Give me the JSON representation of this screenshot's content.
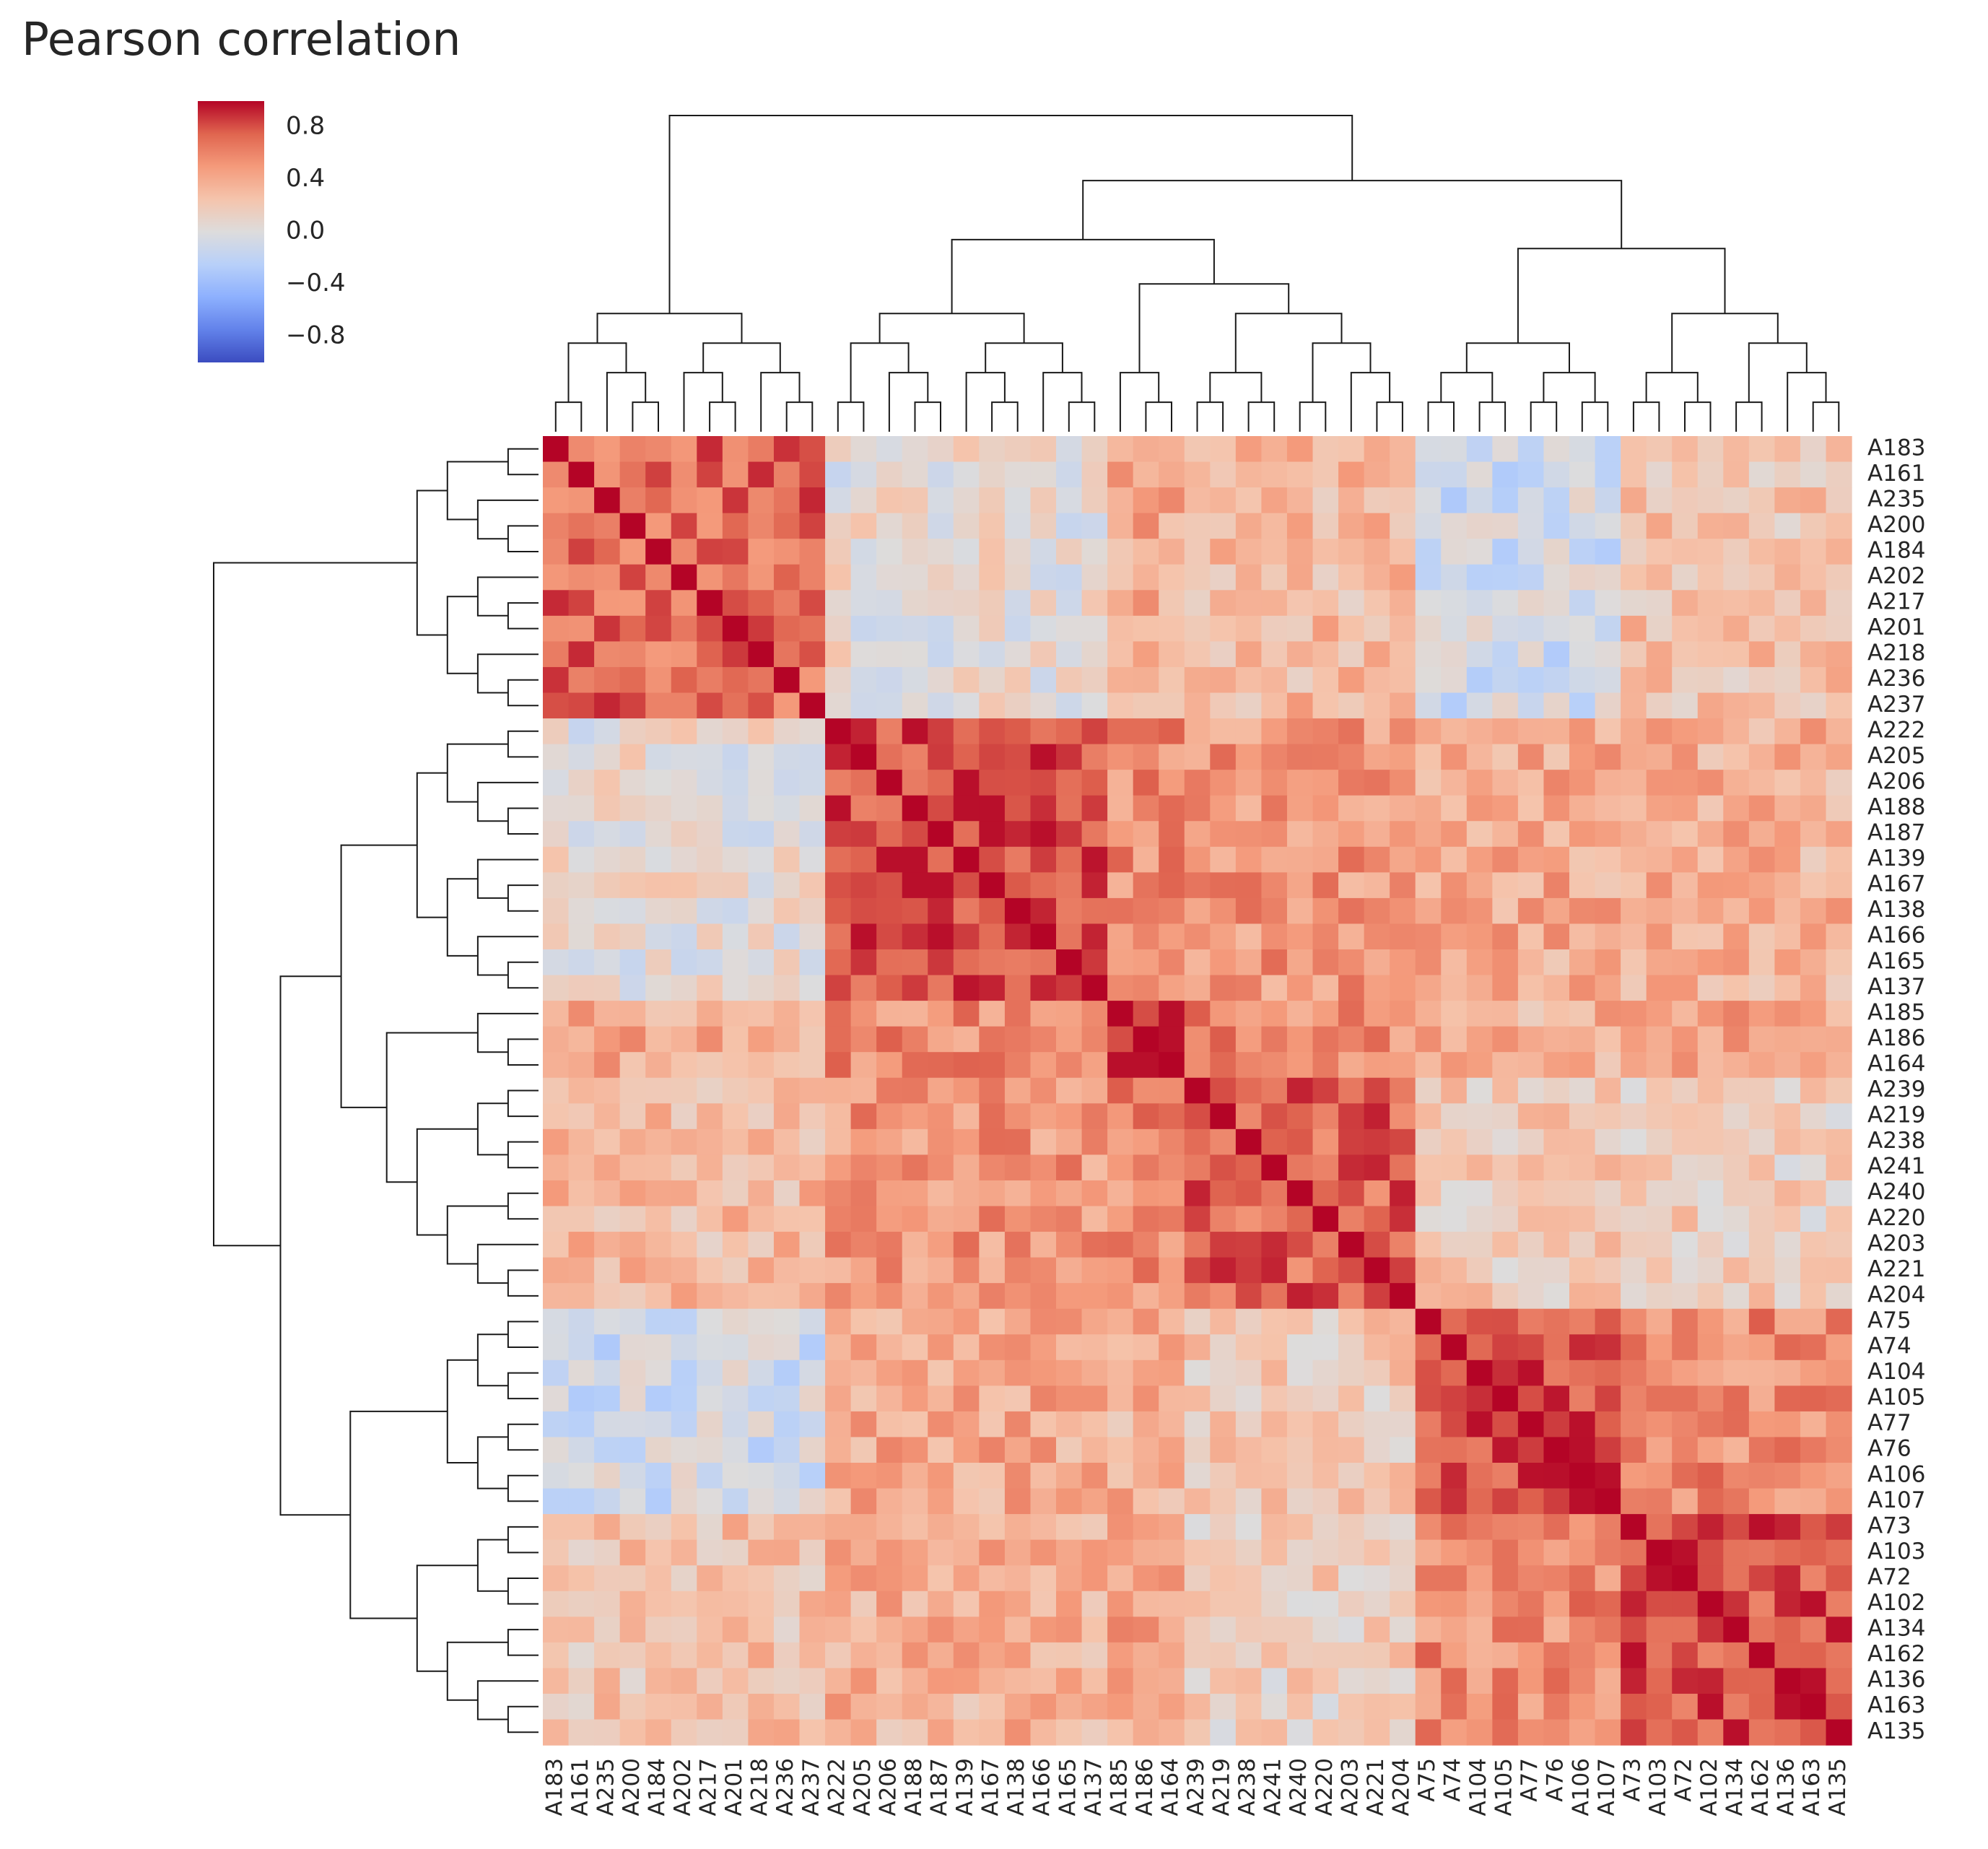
{
  "chart_data": {
    "type": "heatmap",
    "title": "Pearson correlation",
    "clustered": true,
    "colormap": "coolwarm",
    "vmin": -1,
    "vmax": 1,
    "colorbar": {
      "ticks": [
        0.8,
        0.4,
        0.0,
        -0.4,
        -0.8
      ],
      "tick_labels": [
        "0.8",
        "0.4",
        "0.0",
        "−0.4",
        "−0.8"
      ]
    },
    "row_labels": [
      "A183",
      "A161",
      "A235",
      "A200",
      "A184",
      "A202",
      "A217",
      "A201",
      "A218",
      "A236",
      "A237",
      "A222",
      "A205",
      "A206",
      "A188",
      "A187",
      "A139",
      "A167",
      "A138",
      "A166",
      "A165",
      "A137",
      "A185",
      "A186",
      "A164",
      "A239",
      "A219",
      "A238",
      "A241",
      "A240",
      "A220",
      "A203",
      "A221",
      "A204",
      "A75",
      "A74",
      "A104",
      "A105",
      "A77",
      "A76",
      "A106",
      "A107",
      "A73",
      "A103",
      "A72",
      "A102",
      "A134",
      "A162",
      "A136",
      "A163",
      "A135"
    ],
    "col_labels": [
      "A183",
      "A161",
      "A235",
      "A200",
      "A184",
      "A202",
      "A217",
      "A201",
      "A218",
      "A236",
      "A237",
      "A222",
      "A205",
      "A206",
      "A188",
      "A187",
      "A139",
      "A167",
      "A138",
      "A166",
      "A165",
      "A137",
      "A185",
      "A186",
      "A164",
      "A239",
      "A219",
      "A238",
      "A241",
      "A240",
      "A220",
      "A203",
      "A221",
      "A204",
      "A75",
      "A74",
      "A104",
      "A105",
      "A77",
      "A76",
      "A106",
      "A107",
      "A73",
      "A103",
      "A72",
      "A102",
      "A134",
      "A162",
      "A136",
      "A163",
      "A135"
    ],
    "groups": {
      "block_sizes": [
        11,
        11,
        3,
        9,
        8,
        9
      ],
      "block_means": [
        [
          0.7,
          0.05,
          0.4,
          0.3,
          -0.1,
          0.25
        ],
        [
          0.05,
          0.8,
          0.55,
          0.5,
          0.4,
          0.35
        ],
        [
          0.4,
          0.55,
          0.9,
          0.55,
          0.35,
          0.45
        ],
        [
          0.3,
          0.5,
          0.55,
          0.72,
          0.2,
          0.15
        ],
        [
          -0.1,
          0.4,
          0.35,
          0.2,
          0.82,
          0.55
        ],
        [
          0.25,
          0.35,
          0.45,
          0.15,
          0.55,
          0.8
        ]
      ]
    },
    "legend_position": "top-left"
  }
}
